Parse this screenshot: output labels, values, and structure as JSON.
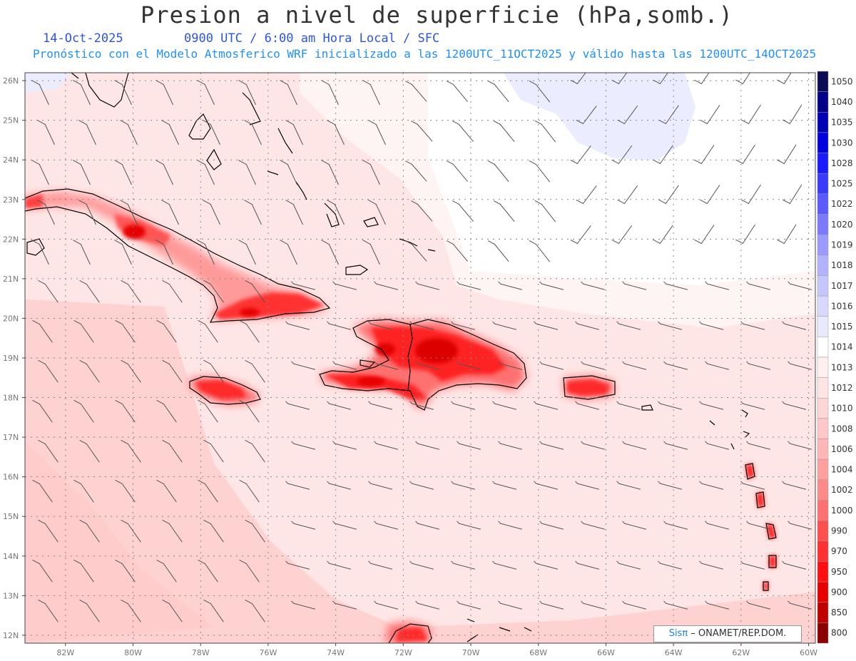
{
  "title": "Presion a nivel de superficie (hPa,somb.)",
  "date": "14-Oct-2025",
  "valid_time": "0900 UTC / 6:00 am Hora Local / SFC",
  "model_line": "Pronóstico con el Modelo Atmosferico WRF inicializado a las 1200UTC_11OCT2025 y válido hasta las  1200UTC_14OCT2025",
  "credit": {
    "brand": "Sisπ",
    "text": " – ONAMET/REP.DOM."
  },
  "lat_labels": [
    "26N",
    "25N",
    "24N",
    "23N",
    "22N",
    "21N",
    "20N",
    "19N",
    "18N",
    "17N",
    "16N",
    "15N",
    "14N",
    "13N",
    "12N"
  ],
  "lon_labels": [
    "82W",
    "80W",
    "78W",
    "76W",
    "74W",
    "72W",
    "70W",
    "68W",
    "66W",
    "64W",
    "62W",
    "60W"
  ],
  "colorbar": [
    {
      "label": "1050",
      "color": "#0a0a55"
    },
    {
      "label": "1040",
      "color": "#00008b"
    },
    {
      "label": "1035",
      "color": "#0000b4"
    },
    {
      "label": "1030",
      "color": "#0000e0"
    },
    {
      "label": "1028",
      "color": "#1a1aff"
    },
    {
      "label": "1025",
      "color": "#3a3aff"
    },
    {
      "label": "1022",
      "color": "#5a5aff"
    },
    {
      "label": "1020",
      "color": "#7a7aff"
    },
    {
      "label": "1019",
      "color": "#9a9aff"
    },
    {
      "label": "1018",
      "color": "#b2b2ff"
    },
    {
      "label": "1017",
      "color": "#c6c6ff"
    },
    {
      "label": "1016",
      "color": "#d8d8ff"
    },
    {
      "label": "1015",
      "color": "#e8e8ff"
    },
    {
      "label": "1014",
      "color": "#ffffff"
    },
    {
      "label": "1013",
      "color": "#fff0f0"
    },
    {
      "label": "1012",
      "color": "#ffe4e4"
    },
    {
      "label": "1010",
      "color": "#ffd6d6"
    },
    {
      "label": "1008",
      "color": "#ffc8c8"
    },
    {
      "label": "1006",
      "color": "#ffb6b6"
    },
    {
      "label": "1004",
      "color": "#ffa0a0"
    },
    {
      "label": "1002",
      "color": "#ff8a8a"
    },
    {
      "label": "1000",
      "color": "#ff7070"
    },
    {
      "label": "990",
      "color": "#ff5050"
    },
    {
      "label": "970",
      "color": "#ff3030"
    },
    {
      "label": "950",
      "color": "#ff1010"
    },
    {
      "label": "900",
      "color": "#e60000"
    },
    {
      "label": "850",
      "color": "#c00000"
    },
    {
      "label": "800",
      "color": "#8b0000"
    }
  ],
  "colors": {
    "background_pressure": "#ffe4e4",
    "low_pressure_land": "#ff1a1a",
    "high_pressure_zone": "#ececff",
    "coastline": "#000000",
    "wind_barb": "#555555",
    "grid": "#888888"
  }
}
